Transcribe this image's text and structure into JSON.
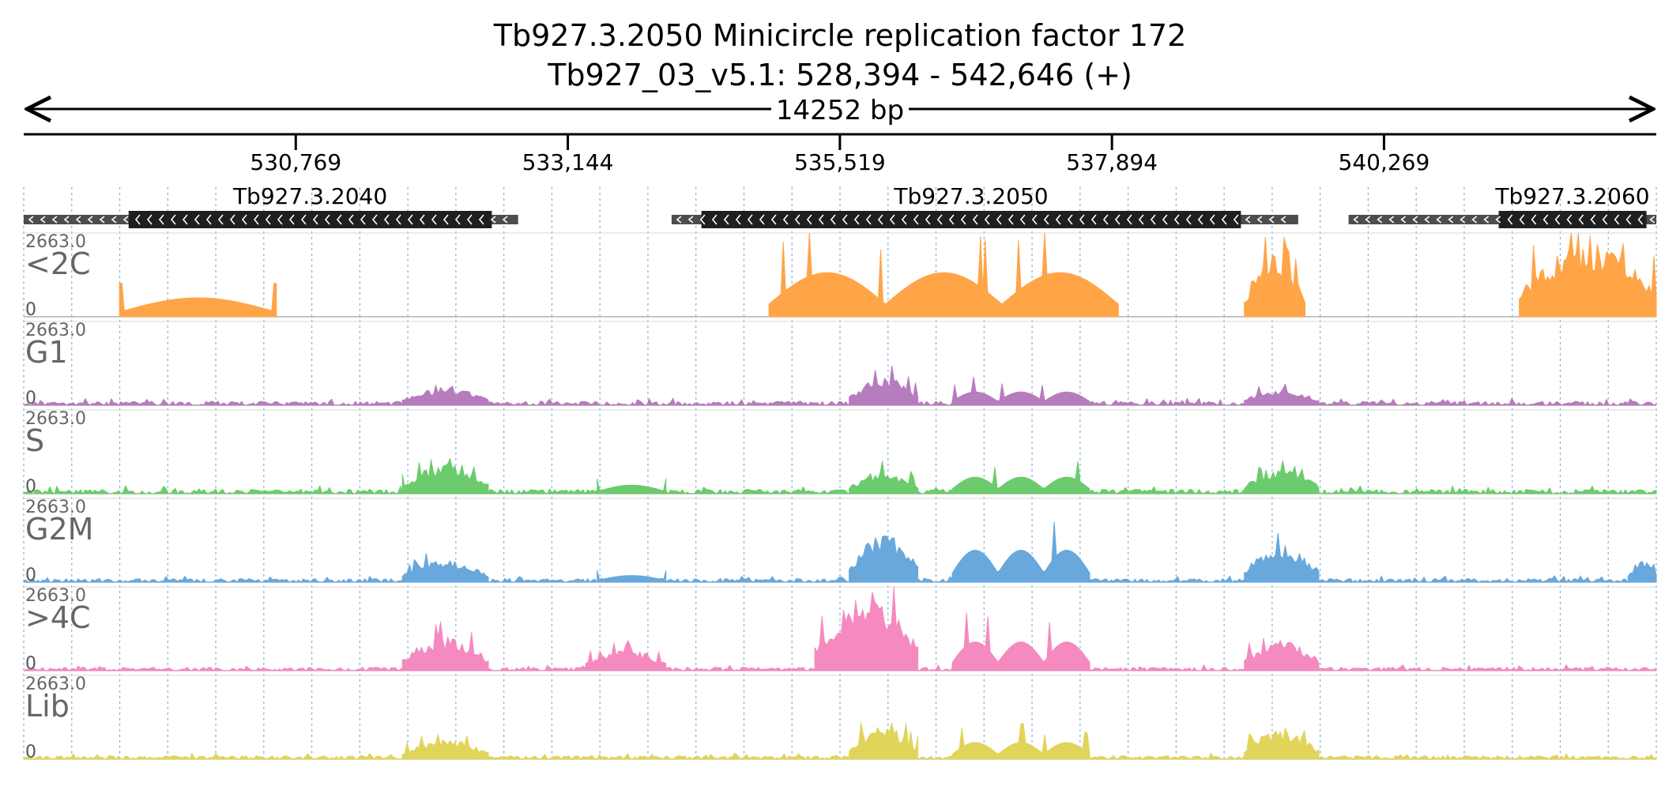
{
  "header": {
    "title_line1": "Tb927.3.2050  Minicircle replication factor 172",
    "title_line2": "Tb927_03_v5.1: 528,394 - 542,646 (+)",
    "span_label": "14252 bp"
  },
  "chart_data": {
    "type": "area",
    "region": {
      "chrom": "Tb927_03_v5.1",
      "start": 528394,
      "end": 542646,
      "strand": "+"
    },
    "ruler_ticks": [
      "530,769",
      "533,144",
      "535,519",
      "537,894",
      "540,269"
    ],
    "ruler_tick_values": [
      530769,
      533144,
      535519,
      537894,
      540269
    ],
    "genes": [
      {
        "name": "Tb927.3.2040",
        "utr_start": 528394,
        "utr_end": 532710,
        "cds_start": 529310,
        "cds_end": 532480,
        "strand": "-"
      },
      {
        "name": "Tb927.3.2050",
        "utr_start": 534050,
        "utr_end": 539520,
        "cds_start": 534310,
        "cds_end": 539020,
        "strand": "-"
      },
      {
        "name": "Tb927.3.2060",
        "utr_start": 539960,
        "utr_end": 542646,
        "cds_start": 541270,
        "cds_end": 542560,
        "strand": "-"
      }
    ],
    "tracks": [
      {
        "name": "<2C",
        "color": "#ffa447",
        "ymax_label": "2663.0",
        "ymin_label": "0",
        "ymax": 2663.0,
        "segments": [
          {
            "start": 529230,
            "end": 530600,
            "peak": 1000,
            "shape": "bowl"
          },
          {
            "start": 534900,
            "end": 537950,
            "peak": 2000,
            "shape": "humps"
          },
          {
            "start": 539050,
            "end": 539580,
            "peak": 2200,
            "shape": "spiky"
          },
          {
            "start": 541450,
            "end": 542646,
            "peak": 2663,
            "shape": "spiky"
          }
        ]
      },
      {
        "name": "G1",
        "color": "#b77cbd",
        "ymax_label": "2663.0",
        "ymin_label": "0",
        "ymax": 2663.0,
        "segments": [
          {
            "start": 528394,
            "end": 542646,
            "peak": 180,
            "shape": "background"
          },
          {
            "start": 531700,
            "end": 532450,
            "peak": 650,
            "shape": "spiky"
          },
          {
            "start": 535600,
            "end": 536200,
            "peak": 1000,
            "shape": "spiky"
          },
          {
            "start": 536500,
            "end": 537700,
            "peak": 600,
            "shape": "humps"
          },
          {
            "start": 539050,
            "end": 539700,
            "peak": 600,
            "shape": "spiky"
          }
        ]
      },
      {
        "name": "S",
        "color": "#6ccb6c",
        "ymax_label": "2663.0",
        "ymin_label": "0",
        "ymax": 2663.0,
        "segments": [
          {
            "start": 528394,
            "end": 542646,
            "peak": 200,
            "shape": "background"
          },
          {
            "start": 531700,
            "end": 532450,
            "peak": 1050,
            "shape": "spiky"
          },
          {
            "start": 533400,
            "end": 534000,
            "peak": 450,
            "shape": "bowl"
          },
          {
            "start": 535600,
            "end": 536200,
            "peak": 800,
            "shape": "spiky"
          },
          {
            "start": 536500,
            "end": 537700,
            "peak": 750,
            "shape": "humps"
          },
          {
            "start": 539050,
            "end": 539700,
            "peak": 850,
            "shape": "spiky"
          }
        ]
      },
      {
        "name": "G2M",
        "color": "#68a8dc",
        "ymax_label": "2663.0",
        "ymin_label": "0",
        "ymax": 2663.0,
        "segments": [
          {
            "start": 528394,
            "end": 542646,
            "peak": 160,
            "shape": "background"
          },
          {
            "start": 531700,
            "end": 532450,
            "peak": 800,
            "shape": "spiky"
          },
          {
            "start": 533400,
            "end": 534000,
            "peak": 350,
            "shape": "bowl"
          },
          {
            "start": 535600,
            "end": 536200,
            "peak": 1750,
            "shape": "spiky"
          },
          {
            "start": 536500,
            "end": 537700,
            "peak": 1450,
            "shape": "humps"
          },
          {
            "start": 539050,
            "end": 539700,
            "peak": 1300,
            "shape": "spiky"
          },
          {
            "start": 542400,
            "end": 542646,
            "peak": 800,
            "shape": "spiky"
          }
        ]
      },
      {
        "name": ">4C",
        "color": "#f48ac0",
        "ymax_label": "2663.0",
        "ymin_label": "0",
        "ymax": 2663.0,
        "segments": [
          {
            "start": 528394,
            "end": 542646,
            "peak": 150,
            "shape": "background"
          },
          {
            "start": 531700,
            "end": 532450,
            "peak": 1250,
            "shape": "spiky"
          },
          {
            "start": 533300,
            "end": 534000,
            "peak": 800,
            "shape": "spiky"
          },
          {
            "start": 535300,
            "end": 536200,
            "peak": 2600,
            "shape": "spiky"
          },
          {
            "start": 536500,
            "end": 537700,
            "peak": 1300,
            "shape": "humps"
          },
          {
            "start": 539050,
            "end": 539700,
            "peak": 1100,
            "shape": "spiky"
          }
        ]
      },
      {
        "name": "Lib",
        "color": "#e1d45a",
        "ymax_label": "2663.0",
        "ymin_label": "0",
        "ymax": 2663.0,
        "segments": [
          {
            "start": 528394,
            "end": 542646,
            "peak": 150,
            "shape": "background"
          },
          {
            "start": 531700,
            "end": 532450,
            "peak": 700,
            "shape": "spiky"
          },
          {
            "start": 535600,
            "end": 536200,
            "peak": 1150,
            "shape": "spiky"
          },
          {
            "start": 536500,
            "end": 537700,
            "peak": 750,
            "shape": "humps"
          },
          {
            "start": 539050,
            "end": 539700,
            "peak": 1050,
            "shape": "spiky"
          }
        ]
      }
    ]
  },
  "colors": {
    "gene_cds": "#1f1f1f",
    "gene_utr": "#4d4d4d",
    "grid_line": "#7fb1e0",
    "track_baseline": "#b0b0b0",
    "axis": "#000000"
  }
}
